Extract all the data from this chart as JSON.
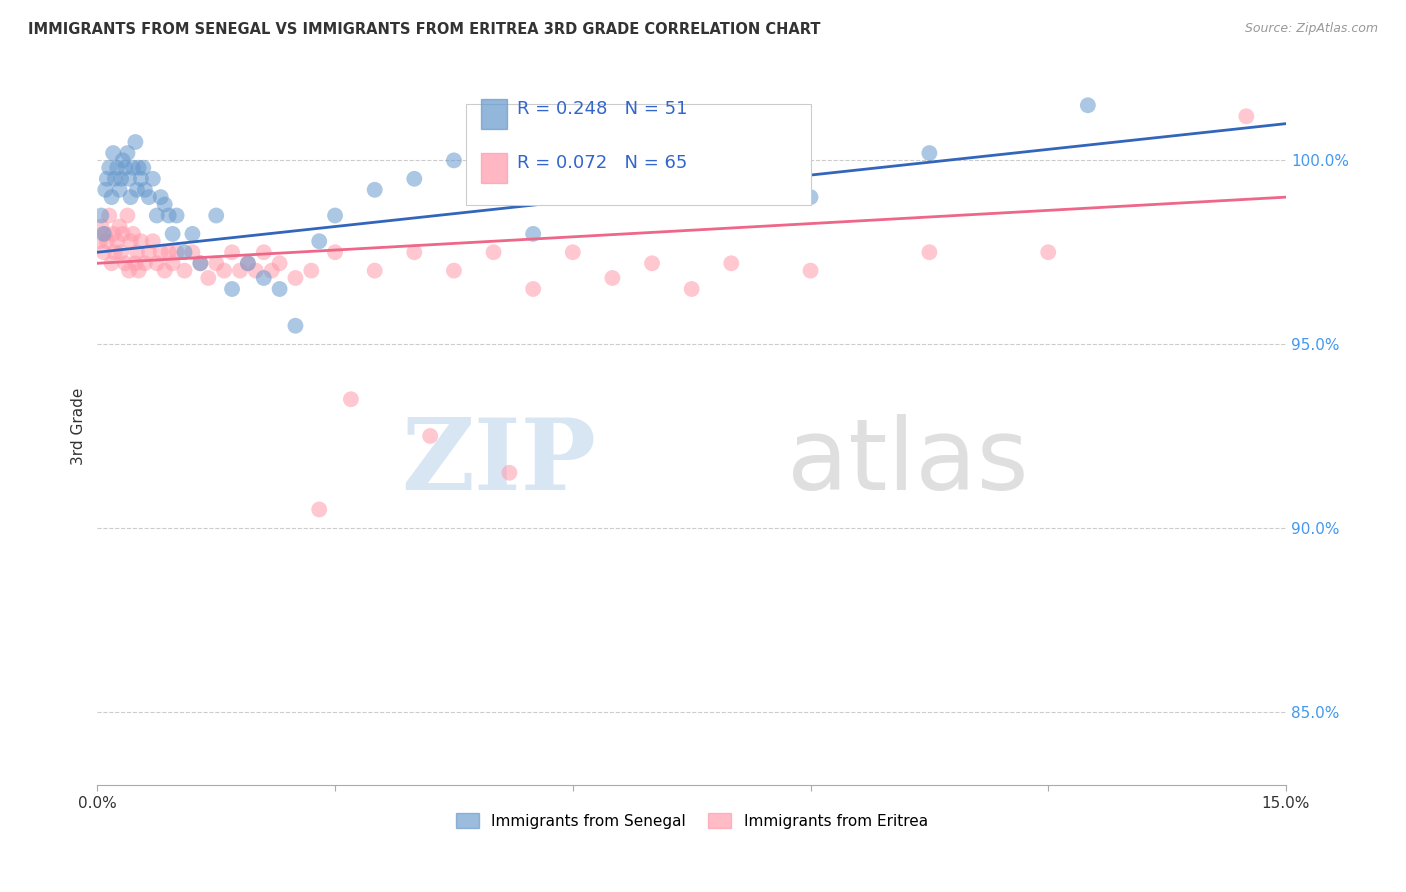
{
  "title": "IMMIGRANTS FROM SENEGAL VS IMMIGRANTS FROM ERITREA 3RD GRADE CORRELATION CHART",
  "source": "Source: ZipAtlas.com",
  "ylabel": "3rd Grade",
  "xlim": [
    0.0,
    15.0
  ],
  "ylim": [
    83.0,
    102.5
  ],
  "yticks": [
    85.0,
    90.0,
    95.0,
    100.0
  ],
  "ytick_labels": [
    "85.0%",
    "90.0%",
    "95.0%",
    "100.0%"
  ],
  "xticks": [
    0.0,
    3.0,
    6.0,
    9.0,
    12.0,
    15.0
  ],
  "xtick_labels": [
    "0.0%",
    "",
    "",
    "",
    "",
    "15.0%"
  ],
  "senegal_R": 0.248,
  "senegal_N": 51,
  "eritrea_R": 0.072,
  "eritrea_N": 65,
  "senegal_color": "#6699CC",
  "eritrea_color": "#FF99AA",
  "senegal_line_color": "#3366BB",
  "eritrea_line_color": "#EE6688",
  "background_color": "#FFFFFF",
  "senegal_x": [
    0.05,
    0.08,
    0.1,
    0.12,
    0.15,
    0.18,
    0.2,
    0.22,
    0.25,
    0.28,
    0.3,
    0.32,
    0.35,
    0.38,
    0.4,
    0.42,
    0.45,
    0.48,
    0.5,
    0.52,
    0.55,
    0.58,
    0.6,
    0.65,
    0.7,
    0.75,
    0.8,
    0.85,
    0.9,
    0.95,
    1.0,
    1.1,
    1.2,
    1.3,
    1.5,
    1.7,
    1.9,
    2.1,
    2.3,
    2.5,
    2.8,
    3.0,
    3.5,
    4.0,
    4.5,
    5.5,
    6.5,
    7.5,
    9.0,
    10.5,
    12.5
  ],
  "senegal_y": [
    98.5,
    98.0,
    99.2,
    99.5,
    99.8,
    99.0,
    100.2,
    99.5,
    99.8,
    99.2,
    99.5,
    100.0,
    99.8,
    100.2,
    99.5,
    99.0,
    99.8,
    100.5,
    99.2,
    99.8,
    99.5,
    99.8,
    99.2,
    99.0,
    99.5,
    98.5,
    99.0,
    98.8,
    98.5,
    98.0,
    98.5,
    97.5,
    98.0,
    97.2,
    98.5,
    96.5,
    97.2,
    96.8,
    96.5,
    95.5,
    97.8,
    98.5,
    99.2,
    99.5,
    100.0,
    98.0,
    99.5,
    99.2,
    99.0,
    100.2,
    101.5
  ],
  "eritrea_x": [
    0.03,
    0.05,
    0.08,
    0.1,
    0.12,
    0.15,
    0.18,
    0.2,
    0.22,
    0.25,
    0.28,
    0.3,
    0.32,
    0.35,
    0.38,
    0.4,
    0.42,
    0.45,
    0.48,
    0.5,
    0.52,
    0.55,
    0.6,
    0.65,
    0.7,
    0.75,
    0.8,
    0.85,
    0.9,
    0.95,
    1.0,
    1.1,
    1.2,
    1.3,
    1.4,
    1.5,
    1.6,
    1.7,
    1.8,
    1.9,
    2.0,
    2.1,
    2.2,
    2.3,
    2.5,
    2.7,
    3.0,
    3.5,
    4.0,
    4.5,
    5.0,
    5.5,
    6.0,
    6.5,
    7.0,
    7.5,
    8.0,
    9.0,
    10.5,
    12.0,
    3.2,
    4.2,
    5.2,
    14.5,
    2.8
  ],
  "eritrea_y": [
    97.8,
    98.2,
    97.5,
    98.0,
    97.8,
    98.5,
    97.2,
    98.0,
    97.5,
    97.8,
    98.2,
    97.5,
    98.0,
    97.2,
    98.5,
    97.0,
    97.8,
    98.0,
    97.2,
    97.5,
    97.0,
    97.8,
    97.2,
    97.5,
    97.8,
    97.2,
    97.5,
    97.0,
    97.5,
    97.2,
    97.5,
    97.0,
    97.5,
    97.2,
    96.8,
    97.2,
    97.0,
    97.5,
    97.0,
    97.2,
    97.0,
    97.5,
    97.0,
    97.2,
    96.8,
    97.0,
    97.5,
    97.0,
    97.5,
    97.0,
    97.5,
    96.5,
    97.5,
    96.8,
    97.2,
    96.5,
    97.2,
    97.0,
    97.5,
    97.5,
    93.5,
    92.5,
    91.5,
    101.2,
    90.5
  ]
}
